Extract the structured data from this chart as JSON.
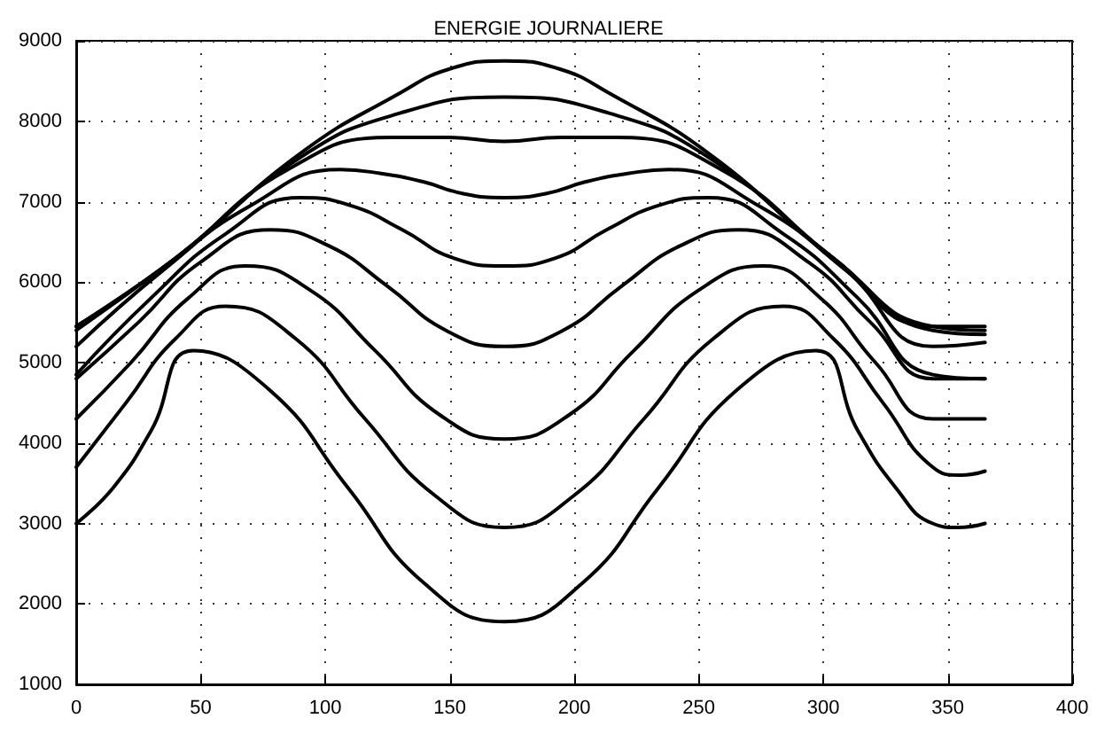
{
  "chart_data": {
    "type": "line",
    "title": "ENERGIE JOURNALIERE",
    "xlim": [
      0,
      400
    ],
    "xticks": [
      0,
      50,
      100,
      150,
      200,
      250,
      300,
      350,
      400
    ],
    "ylim": [
      1000,
      9000
    ],
    "yticks": [
      1000,
      2000,
      3000,
      4000,
      5000,
      6000,
      7000,
      8000,
      9000
    ],
    "grid": true,
    "marker": "none",
    "line_style": "solid",
    "series": [
      {
        "color": "#000000",
        "x": [
          0,
          15,
          30,
          47,
          78,
          109,
          140,
          172,
          203,
          234,
          265,
          297,
          314,
          329,
          344,
          354,
          365
        ],
        "values": [
          3000,
          3450,
          4150,
          5150,
          4650,
          3450,
          2250,
          1780,
          2250,
          3450,
          4650,
          5150,
          4150,
          3450,
          3000,
          2950,
          3000
        ]
      },
      {
        "color": "#000000",
        "x": [
          0,
          20,
          40,
          60,
          88,
          116,
          144,
          172,
          200,
          228,
          256,
          284,
          304,
          324,
          344,
          355,
          365
        ],
        "values": [
          3700,
          4500,
          5300,
          5700,
          5300,
          4300,
          3350,
          2950,
          3350,
          4300,
          5300,
          5700,
          5300,
          4500,
          3700,
          3600,
          3650
        ]
      },
      {
        "color": "#000000",
        "x": [
          0,
          22,
          45,
          68,
          94,
          120,
          146,
          172,
          198,
          224,
          250,
          276,
          299,
          321,
          344,
          365
        ],
        "values": [
          4300,
          5000,
          5800,
          6200,
          5900,
          5150,
          4350,
          4050,
          4350,
          5150,
          5900,
          6200,
          5800,
          5000,
          4300,
          4300
        ]
      },
      {
        "color": "#000000",
        "x": [
          0,
          25,
          50,
          78,
          101.5,
          125,
          148.5,
          172,
          195.5,
          219,
          242.5,
          266,
          294,
          319,
          344,
          365
        ],
        "values": [
          4800,
          5500,
          6250,
          6650,
          6450,
          5950,
          5400,
          5200,
          5400,
          5950,
          6450,
          6650,
          6250,
          5500,
          4800,
          4800
        ]
      },
      {
        "color": "#000000",
        "x": [
          0,
          30,
          60,
          90,
          110.5,
          131,
          151.5,
          172,
          192.5,
          213,
          233.5,
          254,
          284,
          314,
          344,
          365
        ],
        "values": [
          4850,
          5800,
          6600,
          7050,
          6950,
          6650,
          6300,
          6200,
          6300,
          6650,
          6950,
          7050,
          6600,
          5800,
          4850,
          4800
        ]
      },
      {
        "color": "#000000",
        "x": [
          0,
          35,
          70,
          106,
          122.5,
          139,
          155.5,
          172,
          188.5,
          205,
          221.5,
          238,
          274,
          309,
          344,
          365
        ],
        "values": [
          5200,
          6150,
          6950,
          7400,
          7350,
          7250,
          7100,
          7050,
          7100,
          7250,
          7350,
          7400,
          6950,
          6150,
          5200,
          5250
        ]
      },
      {
        "color": "#000000",
        "x": [
          0,
          40,
          85,
          127,
          149.5,
          172,
          194.5,
          217,
          259,
          304,
          344,
          365
        ],
        "values": [
          5400,
          6300,
          7400,
          7800,
          7800,
          7750,
          7800,
          7800,
          7400,
          6300,
          5400,
          5350
        ]
      },
      {
        "color": "#000000",
        "x": [
          0,
          40,
          90,
          130,
          172,
          214,
          254,
          304,
          344,
          365
        ],
        "values": [
          5450,
          6300,
          7550,
          8100,
          8300,
          8100,
          7550,
          6300,
          5450,
          5400
        ]
      },
      {
        "color": "#000000",
        "x": [
          0,
          40,
          90,
          130,
          150,
          172,
          194,
          214,
          254,
          304,
          344,
          365
        ],
        "values": [
          5450,
          6300,
          7600,
          8350,
          8650,
          8750,
          8650,
          8350,
          7600,
          6300,
          5450,
          5450
        ]
      }
    ]
  }
}
